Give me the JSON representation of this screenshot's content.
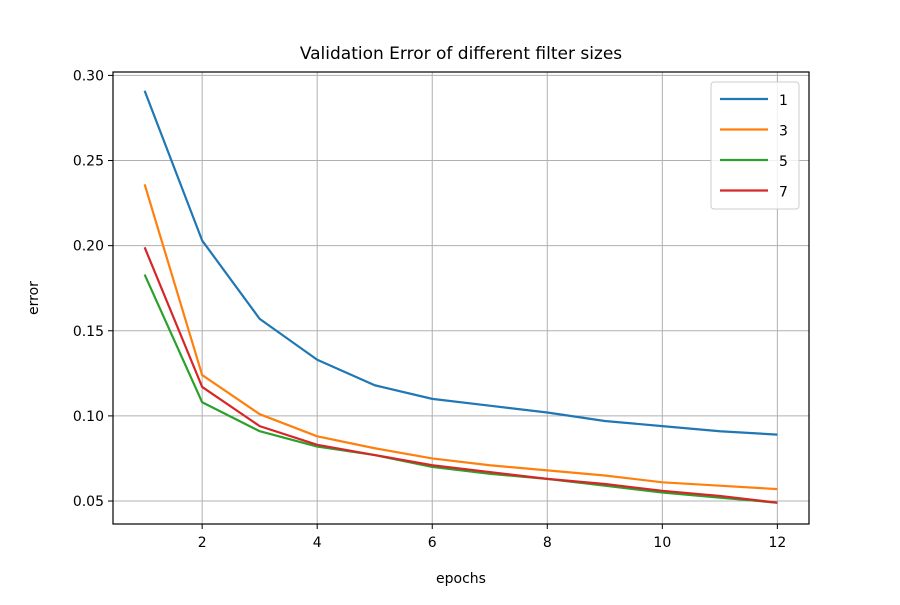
{
  "chart_data": {
    "type": "line",
    "title": "Validation Error of different filter sizes",
    "xlabel": "epochs",
    "ylabel": "error",
    "xlim": [
      0.45,
      12.55
    ],
    "ylim": [
      0.0365,
      0.302
    ],
    "xticks": [
      2,
      4,
      6,
      8,
      10,
      12
    ],
    "yticks": [
      0.05,
      0.1,
      0.15,
      0.2,
      0.25,
      0.3
    ],
    "ytick_labels": [
      "0.05",
      "0.10",
      "0.15",
      "0.20",
      "0.25",
      "0.30"
    ],
    "grid": true,
    "legend_position": "top-right",
    "x": [
      1,
      2,
      3,
      4,
      5,
      6,
      7,
      8,
      9,
      10,
      11,
      12
    ],
    "series": [
      {
        "name": "1",
        "color": "#1f77b4",
        "values": [
          0.291,
          0.203,
          0.157,
          0.133,
          0.118,
          0.11,
          0.106,
          0.102,
          0.097,
          0.094,
          0.091,
          0.089
        ]
      },
      {
        "name": "3",
        "color": "#ff7f0e",
        "values": [
          0.236,
          0.124,
          0.101,
          0.088,
          0.081,
          0.075,
          0.071,
          0.068,
          0.065,
          0.061,
          0.059,
          0.057
        ]
      },
      {
        "name": "5",
        "color": "#2ca02c",
        "values": [
          0.183,
          0.108,
          0.091,
          0.082,
          0.077,
          0.07,
          0.066,
          0.063,
          0.059,
          0.055,
          0.052,
          0.049
        ]
      },
      {
        "name": "7",
        "color": "#d62728",
        "values": [
          0.199,
          0.117,
          0.094,
          0.083,
          0.077,
          0.071,
          0.067,
          0.063,
          0.06,
          0.056,
          0.053,
          0.049
        ]
      }
    ]
  }
}
